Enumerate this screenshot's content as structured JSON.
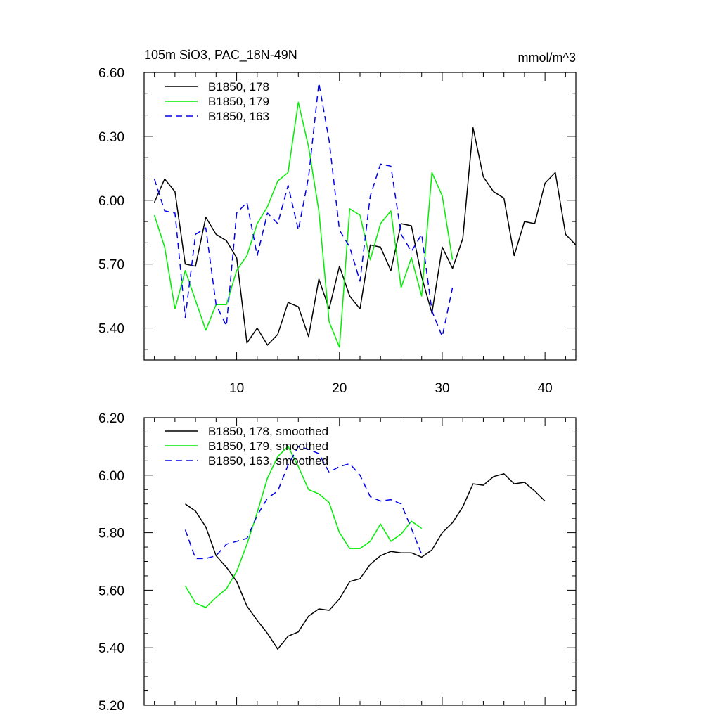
{
  "chart_data": [
    {
      "type": "line",
      "title_left": "105m SiO3, PAC_18N-49N",
      "title_right": "mmol/m^3",
      "xlim": [
        1,
        43
      ],
      "ylim": [
        5.25,
        6.6
      ],
      "yticks": [
        5.4,
        5.7,
        6.0,
        6.3,
        6.6
      ],
      "ytick_labels": [
        "5.40",
        "5.70",
        "6.00",
        "6.30",
        "6.60"
      ],
      "yminor": [
        5.3,
        5.5,
        5.6,
        5.8,
        5.9,
        6.1,
        6.2,
        6.4,
        6.5
      ],
      "xticks": [
        10,
        20,
        30,
        40
      ],
      "xtick_labels": [
        "10",
        "20",
        "30",
        "40"
      ],
      "xminor": [
        2,
        4,
        6,
        8,
        12,
        14,
        16,
        18,
        22,
        24,
        26,
        28,
        32,
        34,
        36,
        38,
        42
      ],
      "series": [
        {
          "name": "B1850, 178",
          "color": "#000000",
          "dash": "solid",
          "x": [
            2,
            3,
            4,
            5,
            6,
            7,
            8,
            9,
            10,
            11,
            12,
            13,
            14,
            15,
            16,
            17,
            18,
            19,
            20,
            21,
            22,
            23,
            24,
            25,
            26,
            27,
            28,
            29,
            30,
            31,
            32,
            33,
            34,
            35,
            36,
            37,
            38,
            39,
            40,
            41,
            42,
            43
          ],
          "values": [
            5.99,
            6.1,
            6.04,
            5.7,
            5.69,
            5.92,
            5.84,
            5.81,
            5.73,
            5.33,
            5.4,
            5.32,
            5.37,
            5.52,
            5.5,
            5.36,
            5.63,
            5.49,
            5.69,
            5.55,
            5.49,
            5.79,
            5.78,
            5.67,
            5.89,
            5.88,
            5.64,
            5.47,
            5.78,
            5.68,
            5.82,
            6.34,
            6.11,
            6.04,
            6.01,
            5.74,
            5.9,
            5.89,
            6.08,
            6.13,
            5.84,
            5.79
          ]
        },
        {
          "name": "B1850, 179",
          "color": "#00ee00",
          "dash": "solid",
          "x": [
            2,
            3,
            4,
            5,
            6,
            7,
            8,
            9,
            10,
            11,
            12,
            13,
            14,
            15,
            16,
            17,
            18,
            19,
            20,
            21,
            22,
            23,
            24,
            25,
            26,
            27,
            28,
            29,
            30,
            31
          ],
          "values": [
            5.93,
            5.78,
            5.49,
            5.67,
            5.53,
            5.39,
            5.51,
            5.51,
            5.67,
            5.74,
            5.89,
            5.97,
            6.09,
            6.13,
            6.46,
            6.25,
            5.95,
            5.43,
            5.31,
            5.96,
            5.93,
            5.72,
            5.89,
            5.95,
            5.59,
            5.73,
            5.55,
            6.13,
            6.02,
            5.72
          ]
        },
        {
          "name": "B1850, 163",
          "color": "#0000ee",
          "dash": "dashed",
          "x": [
            2,
            3,
            4,
            5,
            6,
            7,
            8,
            9,
            10,
            11,
            12,
            13,
            14,
            15,
            16,
            17,
            18,
            19,
            20,
            21,
            22,
            23,
            24,
            25,
            26,
            27,
            28,
            29,
            30,
            31
          ],
          "values": [
            6.1,
            5.95,
            5.94,
            5.45,
            5.84,
            5.87,
            5.51,
            5.41,
            5.94,
            5.99,
            5.74,
            5.94,
            5.89,
            6.07,
            5.86,
            6.11,
            6.55,
            6.28,
            5.86,
            5.78,
            5.62,
            6.02,
            6.17,
            6.16,
            5.84,
            5.76,
            5.84,
            5.48,
            5.36,
            5.59
          ]
        }
      ]
    },
    {
      "type": "line",
      "xlim": [
        1,
        43
      ],
      "ylim": [
        5.2,
        6.2
      ],
      "yticks": [
        5.2,
        5.4,
        5.6,
        5.8,
        6.0,
        6.2
      ],
      "ytick_labels": [
        "5.20",
        "5.40",
        "5.60",
        "5.80",
        "6.00",
        "6.20"
      ],
      "yminor": [
        5.25,
        5.3,
        5.35,
        5.45,
        5.5,
        5.55,
        5.65,
        5.7,
        5.75,
        5.85,
        5.9,
        5.95,
        6.05,
        6.1,
        6.15
      ],
      "xticks": [
        10,
        20,
        30,
        40
      ],
      "xminor": [
        2,
        4,
        6,
        8,
        12,
        14,
        16,
        18,
        22,
        24,
        26,
        28,
        32,
        34,
        36,
        38,
        42
      ],
      "series": [
        {
          "name": "B1850, 178, smoothed",
          "color": "#000000",
          "dash": "solid",
          "x": [
            5,
            6,
            7,
            8,
            9,
            10,
            11,
            12,
            13,
            14,
            15,
            16,
            17,
            18,
            19,
            20,
            21,
            22,
            23,
            24,
            25,
            26,
            27,
            28,
            29,
            30,
            31,
            32,
            33,
            34,
            35,
            36,
            37,
            38,
            39,
            40
          ],
          "values": [
            5.9,
            5.875,
            5.82,
            5.72,
            5.68,
            5.63,
            5.545,
            5.495,
            5.45,
            5.395,
            5.44,
            5.455,
            5.51,
            5.535,
            5.53,
            5.57,
            5.63,
            5.64,
            5.69,
            5.72,
            5.735,
            5.73,
            5.73,
            5.715,
            5.74,
            5.8,
            5.835,
            5.89,
            5.97,
            5.965,
            5.995,
            6.005,
            5.97,
            5.975,
            5.945,
            5.91
          ]
        },
        {
          "name": "B1850, 179, smoothed",
          "color": "#00ee00",
          "dash": "solid",
          "x": [
            5,
            6,
            7,
            8,
            9,
            10,
            11,
            12,
            13,
            14,
            15,
            16,
            17,
            18,
            19,
            20,
            21,
            22,
            23,
            24,
            25,
            26,
            27,
            28
          ],
          "values": [
            5.615,
            5.555,
            5.54,
            5.575,
            5.605,
            5.665,
            5.76,
            5.87,
            5.99,
            6.065,
            6.1,
            6.03,
            5.95,
            5.935,
            5.905,
            5.8,
            5.745,
            5.745,
            5.77,
            5.83,
            5.77,
            5.795,
            5.84,
            5.815
          ]
        },
        {
          "name": "B1850, 163, smoothed",
          "color": "#0000ee",
          "dash": "dashed",
          "x": [
            5,
            6,
            7,
            8,
            9,
            10,
            11,
            12,
            13,
            14,
            15,
            16,
            17,
            18,
            19,
            20,
            21,
            22,
            23,
            24,
            25,
            26,
            27,
            28
          ],
          "values": [
            5.81,
            5.71,
            5.71,
            5.72,
            5.76,
            5.77,
            5.78,
            5.86,
            5.92,
            5.945,
            6.035,
            6.1,
            6.09,
            6.075,
            6.01,
            6.03,
            6.04,
            6.0,
            5.925,
            5.91,
            5.915,
            5.9,
            5.815,
            5.725
          ]
        }
      ]
    }
  ]
}
